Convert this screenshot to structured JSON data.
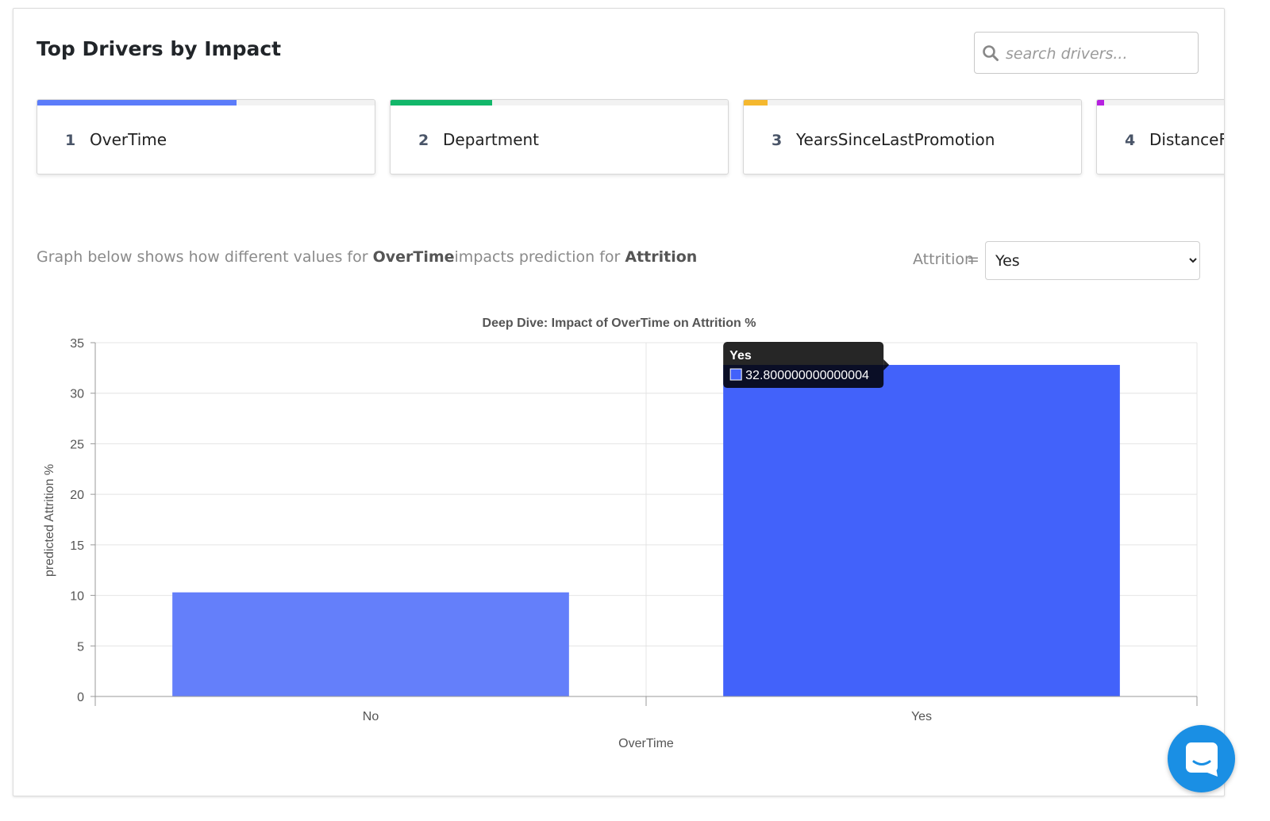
{
  "header": {
    "title": "Top Drivers by Impact",
    "search_placeholder": "search drivers..."
  },
  "drivers": [
    {
      "rank": "1",
      "name": "OverTime",
      "impact": 0.59,
      "color": "#5b7cfa"
    },
    {
      "rank": "2",
      "name": "Department",
      "impact": 0.3,
      "color": "#12b76a"
    },
    {
      "rank": "3",
      "name": "YearsSinceLastPromotion",
      "impact": 0.07,
      "color": "#f5b82e"
    },
    {
      "rank": "4",
      "name": "DistanceFr",
      "impact": 0.02,
      "color": "#b620e0"
    }
  ],
  "description": {
    "prefix": "Graph below shows how different values for ",
    "driver": "OverTime",
    "middle": "impacts prediction for ",
    "target": "Attrition"
  },
  "filter": {
    "label": "Attrition",
    "eq": "=",
    "selected": "Yes",
    "options": [
      "Yes"
    ]
  },
  "chart_data": {
    "type": "bar",
    "title": "Deep Dive: Impact of OverTime on Attrition %",
    "xlabel": "OverTime",
    "ylabel": "predicted Attrition %",
    "categories": [
      "No",
      "Yes"
    ],
    "values": [
      10.3,
      32.8
    ],
    "colors": [
      "#647ffa",
      "#4262fa"
    ],
    "ylim": [
      0,
      35
    ],
    "yticks": [
      "0",
      "5",
      "10",
      "15",
      "20",
      "25",
      "30",
      "35"
    ],
    "grid": true,
    "tooltip": {
      "category": "Yes",
      "value": "32.800000000000004"
    }
  },
  "icons": {
    "search": "search-icon",
    "dropdown": "chevron-down-icon",
    "chat": "chat-icon"
  }
}
